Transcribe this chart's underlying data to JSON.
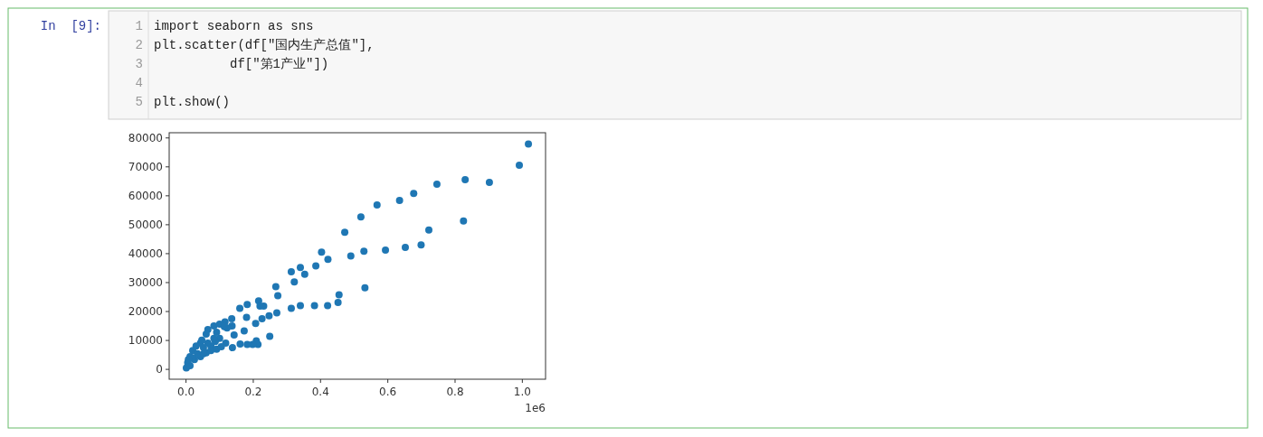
{
  "chart_data": {
    "type": "scatter",
    "x": [
      1.018,
      0.991,
      0.902,
      0.83,
      0.746,
      0.677,
      0.635,
      0.568,
      0.52,
      0.472,
      0.825,
      0.722,
      0.699,
      0.652,
      0.593,
      0.529,
      0.49,
      0.422,
      0.313,
      0.34,
      0.353,
      0.386,
      0.403,
      0.532,
      0.455,
      0.452,
      0.421,
      0.322,
      0.267,
      0.273,
      0.313,
      0.34,
      0.382,
      0.27,
      0.247,
      0.226,
      0.207,
      0.216,
      0.22,
      0.231,
      0.182,
      0.16,
      0.18,
      0.173,
      0.143,
      0.137,
      0.249,
      0.209,
      0.214,
      0.198,
      0.182,
      0.161,
      0.138,
      0.118,
      0.136,
      0.116,
      0.1,
      0.083,
      0.065,
      0.06,
      0.122,
      0.1,
      0.087,
      0.074,
      0.043,
      0.03,
      0.02,
      0.012,
      0.005,
      0.001,
      0.012,
      0.025,
      0.043,
      0.06,
      0.074,
      0.091,
      0.105,
      0.052,
      0.065,
      0.034,
      0.052,
      0.02,
      0.047,
      0.083,
      0.091,
      0.114,
      0.007
    ],
    "series": [
      {
        "color": "#1f77b4",
        "values": [
          77900,
          70600,
          64600,
          65600,
          64000,
          60800,
          58400,
          56800,
          52700,
          47400,
          51300,
          48200,
          43000,
          42200,
          41200,
          40800,
          39200,
          38000,
          33700,
          35200,
          32900,
          35800,
          40500,
          28200,
          25800,
          23100,
          22000,
          30200,
          28600,
          25500,
          21100,
          22000,
          22000,
          19500,
          18500,
          17500,
          15900,
          23700,
          21900,
          21900,
          22400,
          21100,
          18000,
          13300,
          11900,
          15000,
          11400,
          9900,
          8600,
          8600,
          8600,
          8800,
          7500,
          9100,
          17500,
          16400,
          15600,
          15000,
          13800,
          12200,
          14300,
          10700,
          9600,
          8100,
          9100,
          8100,
          6500,
          4400,
          2300,
          500,
          1300,
          3400,
          4400,
          5700,
          6500,
          7000,
          7800,
          7500,
          9100,
          5400,
          5400,
          3900,
          10100,
          10700,
          12800,
          14800,
          3400
        ]
      }
    ],
    "xlim": [
      -0.05,
      1.069
    ],
    "ylim": [
      -3400,
      81800
    ],
    "xticks": [
      {
        "value": 0,
        "label": "0.0"
      },
      {
        "value": 0.2,
        "label": "0.2"
      },
      {
        "value": 0.4,
        "label": "0.4"
      },
      {
        "value": 0.6,
        "label": "0.6"
      },
      {
        "value": 0.8,
        "label": "0.8"
      },
      {
        "value": 1.0,
        "label": "1.0"
      }
    ],
    "yticks": [
      0,
      10000,
      20000,
      30000,
      40000,
      50000,
      60000,
      70000,
      80000
    ],
    "marker": "circle",
    "grid": false,
    "annotations": [
      "1e6",
      "In  [9]:",
      "1",
      "2",
      "3",
      "4",
      "5",
      "import seaborn as sns",
      "plt.scatter(df[\"国内生产总值\"],",
      "          df[\"第1产业\"])",
      "plt.show()"
    ]
  }
}
